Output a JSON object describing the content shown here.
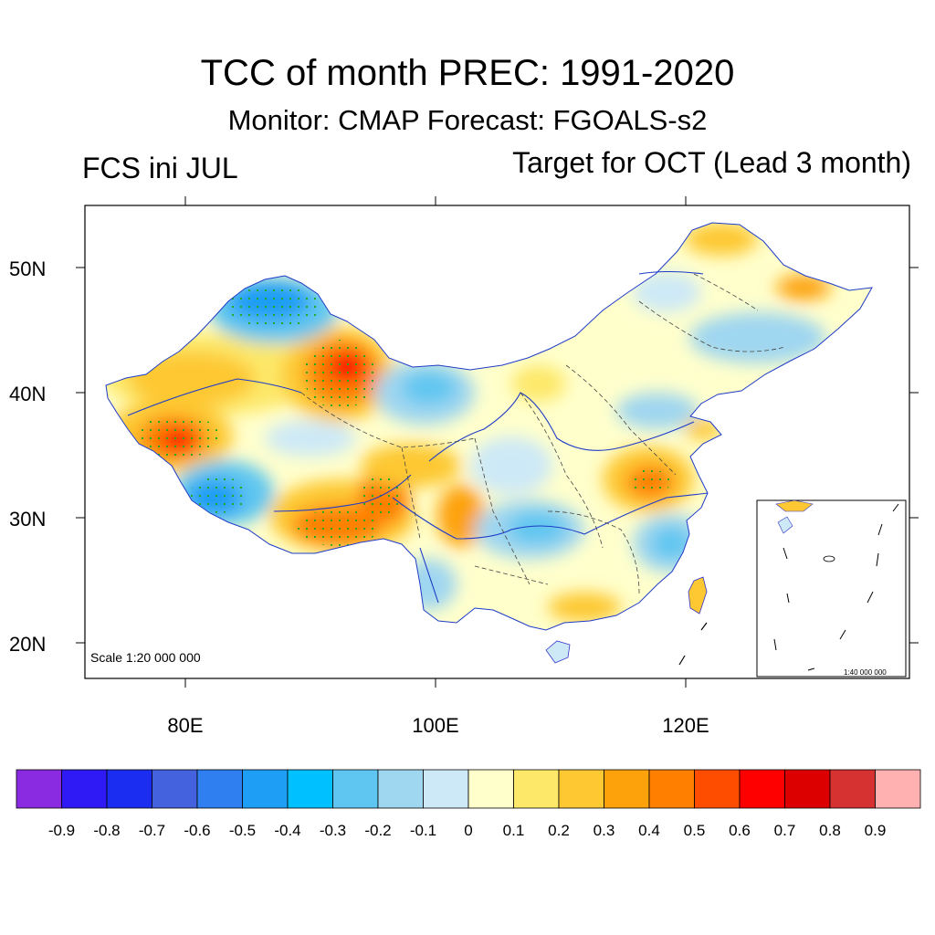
{
  "header": {
    "title": "TCC of month PREC: 1991-2020",
    "subtitle": "Monitor: CMAP   Forecast: FGOALS-s2",
    "left_label": "FCS ini JUL",
    "right_label": "Target for OCT (Lead 3 month)"
  },
  "map": {
    "scale_label": "Scale 1:20 000 000",
    "inset_scale_label": "1:40 000 000",
    "lat_ticks": [
      "50N",
      "40N",
      "30N",
      "20N"
    ],
    "lon_ticks": [
      "80E",
      "100E",
      "120E"
    ],
    "colors": {
      "frame": "#000000",
      "river": "#1e3cc8",
      "boundary": "#444444",
      "stipple": "#22aa22",
      "coast": "#3333cc"
    }
  },
  "colorbar": {
    "colors": [
      "#8a2be2",
      "#2f1af5",
      "#1a2df0",
      "#4462dd",
      "#2f7ff0",
      "#1e9ef5",
      "#00c0ff",
      "#5ec6f0",
      "#9fd6f0",
      "#cde9f7",
      "#ffffcc",
      "#fde869",
      "#fdc832",
      "#fda20a",
      "#ff8000",
      "#ff4d00",
      "#ff0000",
      "#dd0000",
      "#d63232",
      "#ffb0b0"
    ],
    "labels": [
      "-0.9",
      "-0.8",
      "-0.7",
      "-0.6",
      "-0.5",
      "-0.4",
      "-0.3",
      "-0.2",
      "-0.1",
      "0",
      "0.1",
      "0.2",
      "0.3",
      "0.4",
      "0.5",
      "0.6",
      "0.7",
      "0.8",
      "0.9"
    ]
  }
}
